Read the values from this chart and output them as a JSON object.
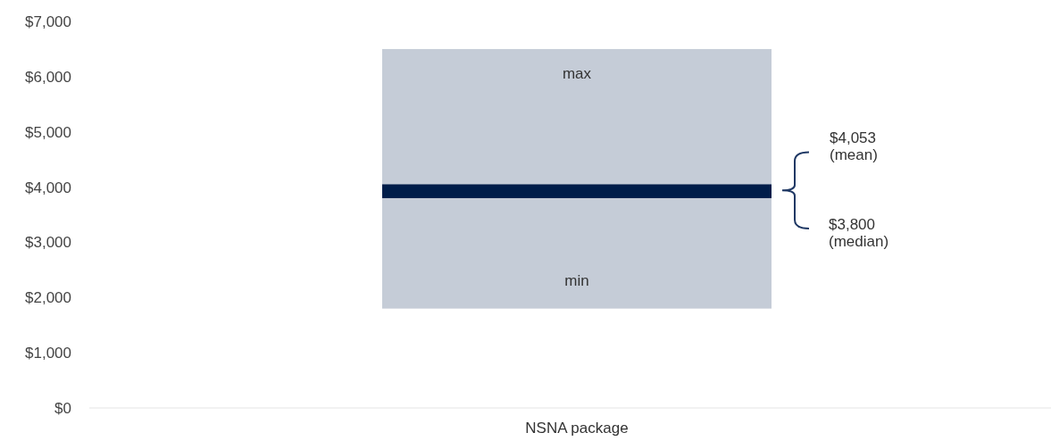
{
  "chart_data": {
    "type": "bar",
    "categories": [
      "NSNA package"
    ],
    "series": [
      {
        "color": "#c5ccd7",
        "base": [
          1800
        ],
        "values": [
          4700
        ]
      },
      {
        "color": "#001d4a",
        "base": [
          3800
        ],
        "values": [
          250
        ]
      }
    ],
    "ylim": [
      0,
      7000
    ],
    "yticks": [
      {
        "value": 0,
        "label": "$0"
      },
      {
        "value": 1000,
        "label": "$1,000"
      },
      {
        "value": 2000,
        "label": "$2,000"
      },
      {
        "value": 3000,
        "label": "$3,000"
      },
      {
        "value": 4000,
        "label": "$4,000"
      },
      {
        "value": 5000,
        "label": "$5,000"
      },
      {
        "value": 6000,
        "label": "$6,000"
      },
      {
        "value": 7000,
        "label": "$7,000"
      }
    ],
    "grid": false,
    "annotations": [
      "max",
      "min",
      "$4,053\n(mean)",
      "$3,800\n(median)"
    ]
  }
}
